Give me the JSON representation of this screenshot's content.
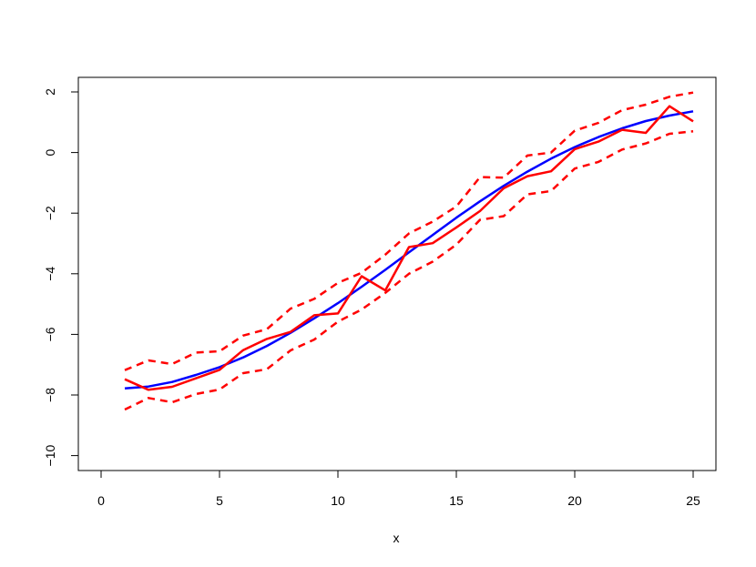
{
  "chart_data": {
    "type": "line",
    "title": "",
    "xlabel": "x",
    "ylabel": "",
    "xlim": [
      0,
      25
    ],
    "ylim": [
      -10,
      2
    ],
    "x_ticks": [
      "0",
      "5",
      "10",
      "15",
      "20",
      "25"
    ],
    "y_ticks": [
      "−10",
      "−8",
      "−6",
      "−4",
      "−2",
      "0",
      "2"
    ],
    "grid": false,
    "legend": "none",
    "x": [
      1,
      2,
      3,
      4,
      5,
      6,
      7,
      8,
      9,
      10,
      11,
      12,
      13,
      14,
      15,
      16,
      17,
      18,
      19,
      20,
      21,
      22,
      23,
      24,
      25
    ],
    "series": [
      {
        "color": "#0000ff",
        "dash": "solid",
        "values": [
          -7.78,
          -7.72,
          -7.57,
          -7.34,
          -7.08,
          -6.76,
          -6.38,
          -5.95,
          -5.47,
          -4.97,
          -4.43,
          -3.87,
          -3.29,
          -2.72,
          -2.15,
          -1.61,
          -1.1,
          -0.63,
          -0.2,
          0.18,
          0.51,
          0.8,
          1.04,
          1.22,
          1.36
        ]
      },
      {
        "color": "#ff0000",
        "dash": "solid",
        "values": [
          -7.48,
          -7.83,
          -7.73,
          -7.45,
          -7.17,
          -6.52,
          -6.15,
          -5.92,
          -5.37,
          -5.31,
          -4.08,
          -4.55,
          -3.12,
          -2.99,
          -2.47,
          -1.93,
          -1.18,
          -0.78,
          -0.62,
          0.11,
          0.36,
          0.75,
          0.65,
          1.53,
          1.03
        ]
      },
      {
        "color": "#ff0000",
        "dash": "dashed",
        "values": [
          -7.18,
          -6.86,
          -6.98,
          -6.6,
          -6.56,
          -6.04,
          -5.83,
          -5.15,
          -4.83,
          -4.3,
          -3.97,
          -3.37,
          -2.67,
          -2.28,
          -1.78,
          -0.81,
          -0.83,
          -0.1,
          0.0,
          0.72,
          0.98,
          1.4,
          1.58,
          1.84,
          1.98
        ]
      },
      {
        "color": "#ff0000",
        "dash": "dashed",
        "values": [
          -8.48,
          -8.1,
          -8.24,
          -7.97,
          -7.82,
          -7.28,
          -7.15,
          -6.53,
          -6.17,
          -5.58,
          -5.18,
          -4.63,
          -4.0,
          -3.6,
          -3.04,
          -2.22,
          -2.1,
          -1.38,
          -1.27,
          -0.53,
          -0.31,
          0.1,
          0.3,
          0.62,
          0.7
        ]
      }
    ]
  }
}
